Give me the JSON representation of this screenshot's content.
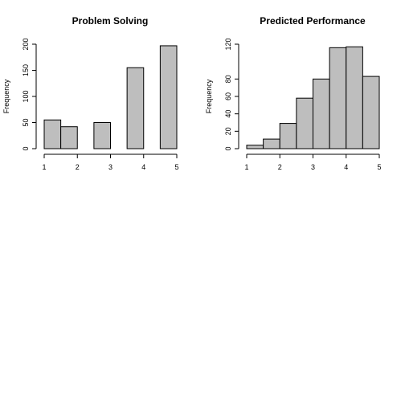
{
  "chart_data": [
    {
      "type": "bar",
      "title": "Problem Solving",
      "xlabel": "",
      "ylabel": "Frequency",
      "bin_edges": [
        1,
        1.5,
        2,
        2.5,
        3,
        3.5,
        4,
        4.5,
        5
      ],
      "values": [
        55,
        42,
        0,
        50,
        0,
        155,
        0,
        197
      ],
      "xlim": [
        1,
        5
      ],
      "ylim": [
        0,
        200
      ],
      "xticks": [
        1,
        2,
        3,
        4,
        5
      ],
      "yticks": [
        0,
        50,
        100,
        150,
        200
      ],
      "grid": false,
      "bar_color": "#bebebe"
    },
    {
      "type": "bar",
      "title": "Predicted Performance",
      "xlabel": "",
      "ylabel": "Frequency",
      "bin_edges": [
        1,
        1.5,
        2,
        2.5,
        3,
        3.5,
        4,
        4.5,
        5
      ],
      "values": [
        4,
        11,
        29,
        58,
        80,
        116,
        117,
        83
      ],
      "xlim": [
        1,
        5
      ],
      "ylim": [
        0,
        120
      ],
      "xticks": [
        1,
        2,
        3,
        4,
        5
      ],
      "yticks": [
        0,
        20,
        40,
        60,
        80,
        120
      ],
      "grid": false,
      "bar_color": "#bebebe"
    }
  ]
}
